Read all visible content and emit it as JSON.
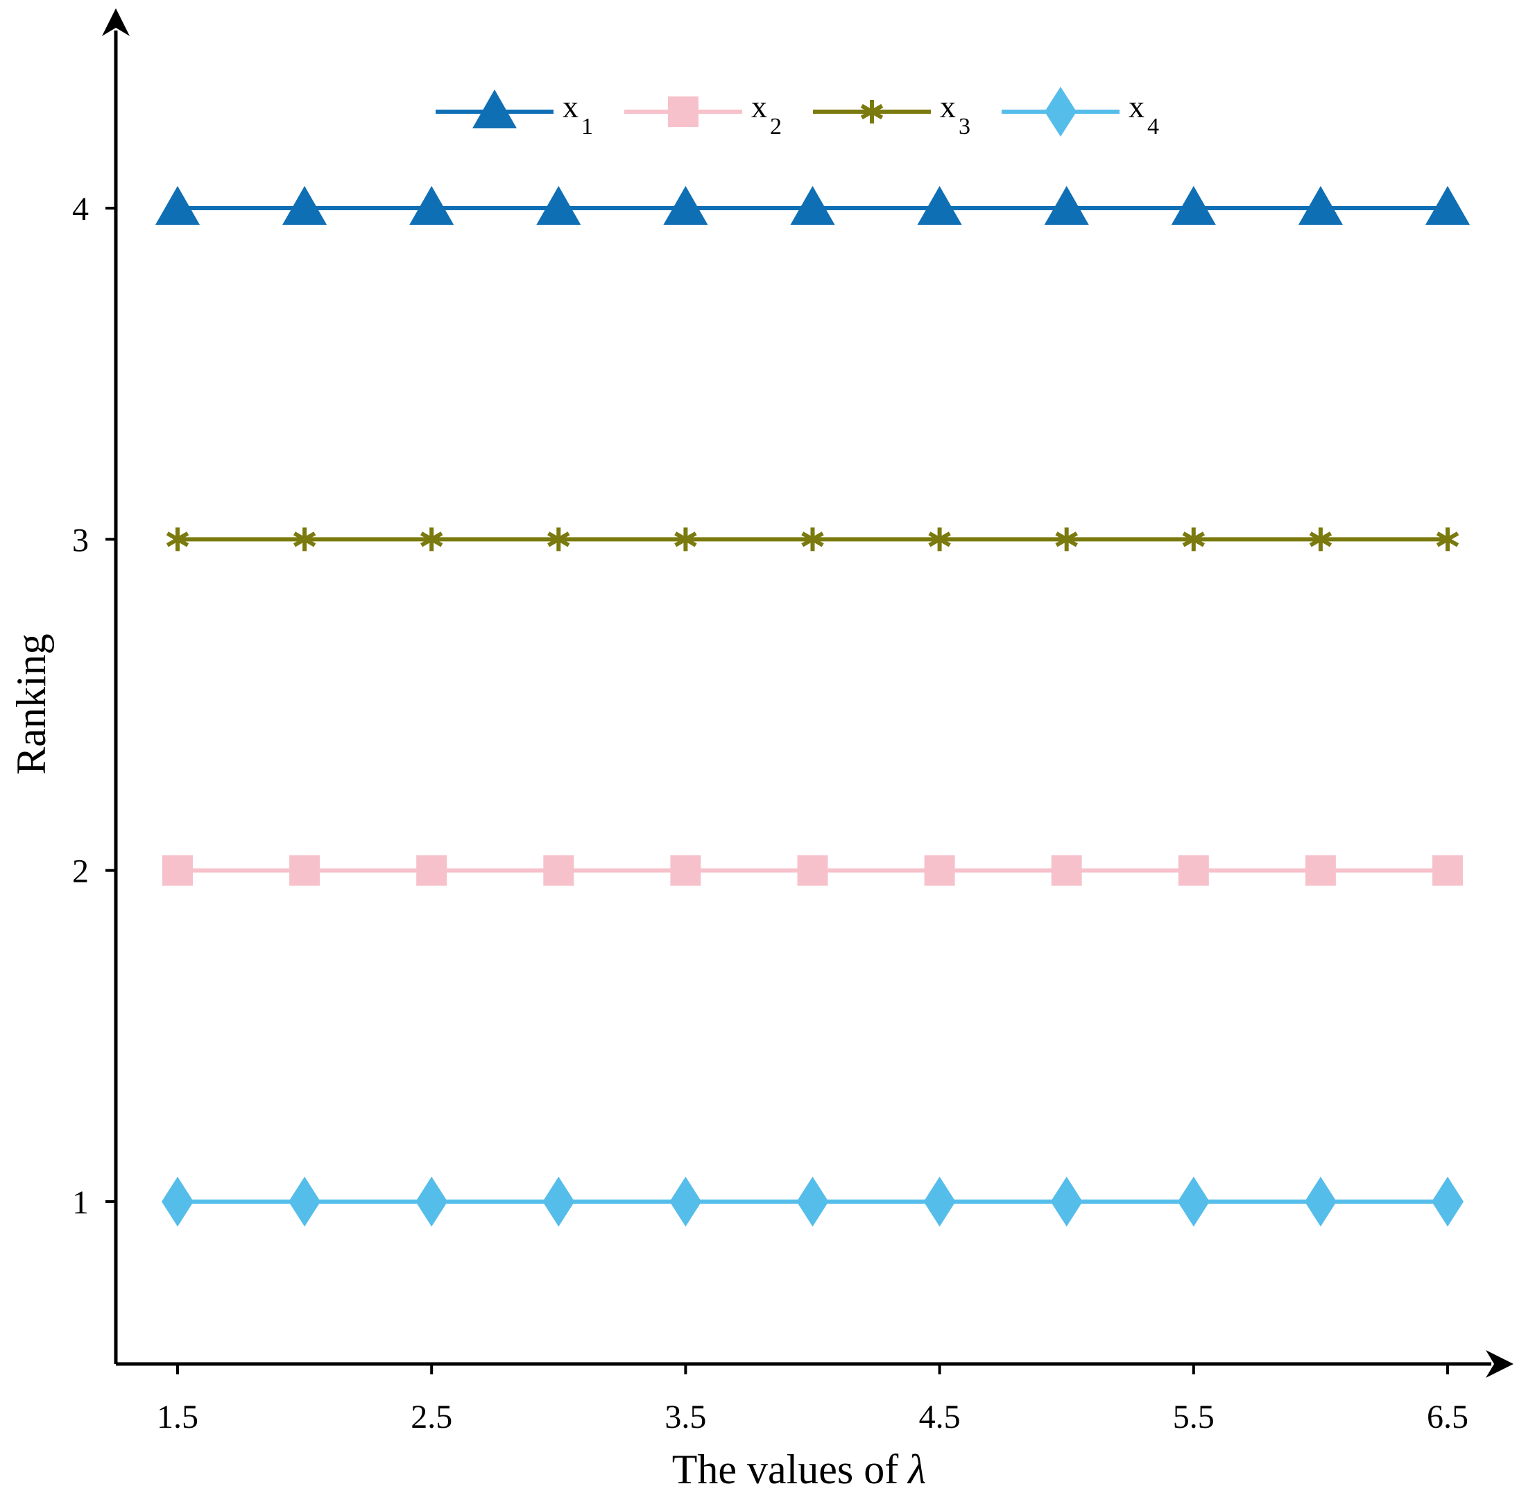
{
  "chart_data": {
    "type": "line",
    "title": "",
    "xlabel": "The values of",
    "xlabel_symbol": "λ",
    "ylabel": "Ranking",
    "x": [
      1.5,
      2,
      2.5,
      3,
      3.5,
      4,
      4.5,
      5,
      5.5,
      6,
      6.5
    ],
    "x_ticks": [
      1.5,
      2.5,
      3.5,
      4.5,
      5.5,
      6.5
    ],
    "x_tick_labels": [
      "1.5",
      "2.5",
      "3.5",
      "4.5",
      "5.5",
      "6.5"
    ],
    "y_ticks": [
      1,
      2,
      3,
      4
    ],
    "y_tick_labels": [
      "1",
      "2",
      "3",
      "4"
    ],
    "xlim": [
      1.25,
      6.7
    ],
    "ylim": [
      0.5,
      4.5
    ],
    "grid": false,
    "legend_position": "top-center",
    "series": [
      {
        "name": "x",
        "sub": "1",
        "marker": "triangle",
        "color": "#0f6fb5",
        "values": [
          4,
          4,
          4,
          4,
          4,
          4,
          4,
          4,
          4,
          4,
          4
        ]
      },
      {
        "name": "x",
        "sub": "2",
        "marker": "square",
        "color": "#f7c1cb",
        "values": [
          2,
          2,
          2,
          2,
          2,
          2,
          2,
          2,
          2,
          2,
          2
        ]
      },
      {
        "name": "x",
        "sub": "3",
        "marker": "asterisk",
        "color": "#7a7a0f",
        "values": [
          3,
          3,
          3,
          3,
          3,
          3,
          3,
          3,
          3,
          3,
          3
        ]
      },
      {
        "name": "x",
        "sub": "4",
        "marker": "diamond",
        "color": "#55bdea",
        "values": [
          1,
          1,
          1,
          1,
          1,
          1,
          1,
          1,
          1,
          1,
          1
        ]
      }
    ]
  }
}
